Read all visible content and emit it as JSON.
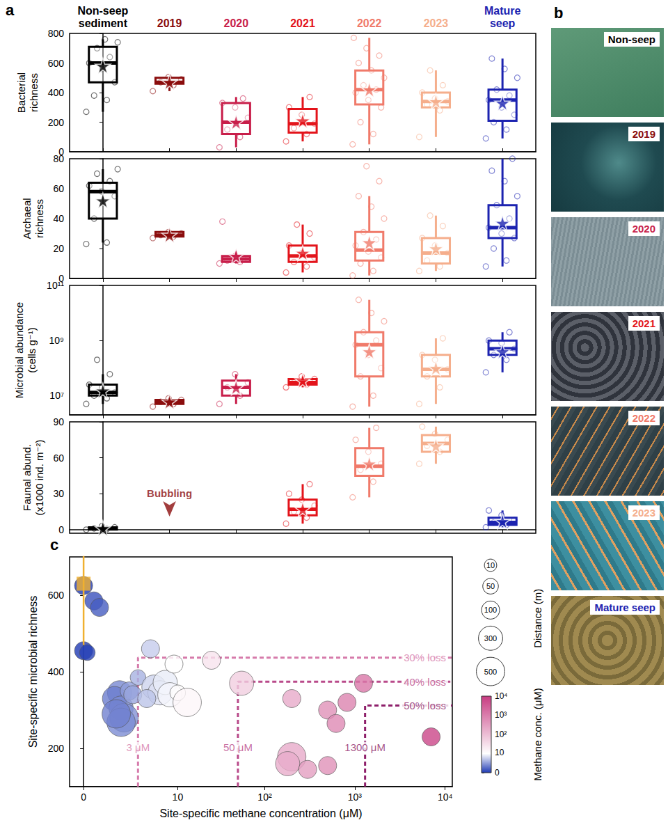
{
  "chart_data": [
    {
      "type": "box",
      "panel_label": "a",
      "ylabel": "Bacterial richness",
      "categories": [
        "Non-seep sediment",
        "2019",
        "2020",
        "2021",
        "2022",
        "2023",
        "Mature seep"
      ],
      "colors": [
        "#000000",
        "#8b0d0d",
        "#c81e4a",
        "#e3141b",
        "#f07a6a",
        "#f5ae8c",
        "#1c23b0"
      ],
      "boxes": [
        [
          270,
          470,
          600,
          710,
          760
        ],
        [
          410,
          460,
          470,
          500,
          510
        ],
        [
          30,
          120,
          200,
          330,
          370
        ],
        [
          70,
          130,
          190,
          290,
          370
        ],
        [
          50,
          320,
          420,
          550,
          770
        ],
        [
          100,
          300,
          340,
          400,
          550
        ],
        [
          90,
          210,
          350,
          420,
          630
        ]
      ],
      "means": [
        580,
        470,
        200,
        210,
        420,
        340,
        330
      ],
      "points": [
        [
          270,
          350,
          380,
          470,
          560,
          600,
          640,
          700,
          740,
          760
        ],
        [
          410,
          450,
          470,
          490,
          505
        ],
        [
          30,
          100,
          150,
          230,
          300,
          330,
          360
        ],
        [
          70,
          120,
          160,
          190,
          250,
          300,
          370
        ],
        [
          50,
          120,
          200,
          300,
          350,
          400,
          420,
          450,
          500,
          550,
          600,
          650,
          700,
          770
        ],
        [
          100,
          280,
          320,
          340,
          360,
          400,
          450,
          550
        ],
        [
          90,
          150,
          200,
          250,
          300,
          350,
          380,
          420,
          500,
          560,
          630
        ]
      ],
      "ylim": [
        0,
        800
      ],
      "yticks": [
        0,
        200,
        400,
        600,
        800
      ]
    },
    {
      "type": "box",
      "ylabel": "Archaeal richness",
      "categories": [
        "Non-seep sediment",
        "2019",
        "2020",
        "2021",
        "2022",
        "2023",
        "Mature seep"
      ],
      "colors": [
        "#000000",
        "#8b0d0d",
        "#c81e4a",
        "#e3141b",
        "#f07a6a",
        "#f5ae8c",
        "#1c23b0"
      ],
      "boxes": [
        [
          24,
          40,
          58,
          64,
          73
        ],
        [
          28,
          28,
          29,
          31,
          31
        ],
        [
          10,
          11,
          13,
          15,
          18
        ],
        [
          4,
          11,
          15,
          22,
          36
        ],
        [
          2,
          12,
          19,
          31,
          55
        ],
        [
          5,
          10,
          17,
          27,
          42
        ],
        [
          8,
          27,
          34,
          49,
          80
        ]
      ],
      "means": [
        52,
        29,
        15,
        17,
        24,
        20,
        37
      ],
      "points": [
        [
          23,
          24,
          40,
          55,
          58,
          62,
          65,
          70,
          73
        ],
        [
          27,
          28,
          29,
          30,
          31
        ],
        [
          10,
          11,
          12,
          13,
          15,
          38
        ],
        [
          4,
          8,
          11,
          14,
          17,
          22,
          30,
          36
        ],
        [
          2,
          5,
          10,
          14,
          18,
          22,
          26,
          31,
          40,
          48,
          55,
          65,
          75
        ],
        [
          5,
          8,
          12,
          17,
          22,
          27,
          35,
          42
        ],
        [
          8,
          12,
          20,
          27,
          30,
          34,
          40,
          49,
          55,
          65,
          72,
          80
        ]
      ],
      "ylim": [
        0,
        80
      ],
      "yticks": [
        0,
        20,
        40,
        60,
        80
      ],
      "tick_labels": "y"
    },
    {
      "type": "box",
      "ylabel": "Microbial abundance (cells g⁻¹)",
      "log": "y",
      "categories": [
        "Non-seep sediment",
        "2019",
        "2020",
        "2021",
        "2022",
        "2023",
        "Mature seep"
      ],
      "colors": [
        "#000000",
        "#8b0d0d",
        "#c81e4a",
        "#e3141b",
        "#f07a6a",
        "#f5ae8c",
        "#1c23b0"
      ],
      "boxes": [
        [
          5000000,
          10000000,
          13000000,
          25000000,
          60000000
        ],
        [
          4000000,
          5000000,
          6000000,
          7000000,
          8000000
        ],
        [
          5000000,
          10000000,
          20000000,
          35000000,
          60000000
        ],
        [
          20000000,
          25000000,
          30000000,
          40000000,
          50000000
        ],
        [
          4000000,
          50000000,
          700000000,
          2000000000,
          30000000000
        ],
        [
          5000000,
          50000000,
          90000000,
          300000000,
          1200000000
        ],
        [
          70000000,
          300000000,
          500000000,
          1000000000,
          2000000000
        ]
      ],
      "means": [
        15000000,
        6000000,
        20000000,
        35000000,
        400000000,
        100000000,
        400000000
      ],
      "points": [
        [
          5000000,
          8000000,
          10000000,
          13000000,
          20000000,
          25000000,
          60000000,
          200000000
        ],
        [
          4000000,
          5000000,
          6000000,
          7000000,
          8000000
        ],
        [
          5000000,
          10000000,
          20000000,
          30000000,
          60000000
        ],
        [
          20000000,
          25000000,
          30000000,
          40000000,
          50000000
        ],
        [
          4000000,
          10000000,
          50000000,
          100000000,
          300000000,
          700000000,
          1000000000,
          2000000000,
          5000000000,
          10000000000,
          30000000000
        ],
        [
          5000000,
          20000000,
          50000000,
          90000000,
          200000000,
          300000000,
          1200000000
        ],
        [
          70000000,
          200000000,
          300000000,
          500000000,
          800000000,
          1000000000,
          2000000000
        ]
      ],
      "ylim": [
        2000000,
        100000000000
      ],
      "yticks": [
        {
          "value": 10000000,
          "label": "10⁷"
        },
        {
          "value": 1000000000,
          "label": "10⁹"
        },
        {
          "value": 100000000000,
          "label": "10¹¹"
        }
      ],
      "tick_labels": "y"
    },
    {
      "type": "box",
      "ylabel": "Faunal abund. (x1000 ind. m⁻²)",
      "categories": [
        "Non-seep sediment",
        "2019",
        "2020",
        "2021",
        "2022",
        "2023",
        "Mature seep"
      ],
      "colors": [
        "#000000",
        "#8b0d0d",
        "#c81e4a",
        "#e3141b",
        "#f07a6a",
        "#f5ae8c",
        "#1c23b0"
      ],
      "boxes": [
        [
          0,
          0,
          1,
          2,
          3
        ],
        null,
        null,
        [
          5,
          12,
          17,
          25,
          38
        ],
        [
          27,
          45,
          53,
          68,
          85
        ],
        [
          55,
          65,
          72,
          79,
          86
        ],
        [
          2,
          4,
          6,
          10,
          16
        ]
      ],
      "means": [
        1,
        null,
        null,
        17,
        55,
        70,
        7
      ],
      "points": [
        [
          0,
          0.5,
          1,
          2,
          3
        ],
        null,
        null,
        [
          5,
          10,
          15,
          20,
          25,
          30,
          38
        ],
        [
          27,
          40,
          50,
          55,
          65,
          75,
          85
        ],
        [
          55,
          65,
          70,
          75,
          80,
          86
        ],
        [
          2,
          4,
          6,
          8,
          12,
          16
        ]
      ],
      "annotations": [
        {
          "text": "Bubbling",
          "category": "2019"
        }
      ],
      "ylim": [
        -3,
        90
      ],
      "yticks": [
        0,
        30,
        60,
        90
      ],
      "tick_labels": "y"
    },
    {
      "type": "scatter",
      "panel_label": "c",
      "xlabel": "Site-specific methane concentration (μM)",
      "ylabel": "Site-specific microbial richness",
      "log": "x",
      "xlim": [
        -0.3,
        12000
      ],
      "xticks": [
        0,
        10,
        {
          "value": 100,
          "label": "10²"
        },
        {
          "value": 1000,
          "label": "10³"
        },
        {
          "value": 10000,
          "label": "10⁴"
        }
      ],
      "ylim": [
        100,
        700
      ],
      "yticks": [
        200,
        400,
        600
      ],
      "points": {
        "x": [
          0,
          0.3,
          0.5,
          0,
          0.1,
          1.5,
          1.2,
          1.6,
          1.8,
          1.6,
          1.3,
          2.2,
          3,
          2.5,
          4.5,
          5,
          6,
          4,
          7,
          8,
          9,
          10,
          13,
          25,
          55,
          200,
          200,
          180,
          300,
          500,
          500,
          620,
          820,
          1250,
          7000
        ],
        "y": [
          625,
          585,
          568,
          455,
          450,
          345,
          330,
          305,
          280,
          268,
          290,
          350,
          385,
          340,
          460,
          360,
          345,
          330,
          372,
          340,
          420,
          345,
          320,
          430,
          370,
          330,
          178,
          160,
          145,
          155,
          300,
          265,
          320,
          370,
          230
        ],
        "distance": [
          100,
          100,
          100,
          100,
          50,
          300,
          300,
          300,
          500,
          500,
          500,
          100,
          50,
          100,
          100,
          300,
          300,
          100,
          300,
          300,
          100,
          50,
          500,
          100,
          300,
          100,
          500,
          300,
          100,
          100,
          100,
          100,
          100,
          100,
          100
        ]
      },
      "reference": {
        "x": 0,
        "y": 630,
        "error": [
          470,
          710
        ],
        "color": "#f0b030",
        "marker": "square"
      },
      "thresholds": [
        {
          "x": 3,
          "y": 437,
          "x_label": "3 μM",
          "y_label": "30% loss",
          "color": "#d67bab",
          "line_style": "dashed"
        },
        {
          "x": 50,
          "y": 374,
          "x_label": "50 μM",
          "y_label": "40% loss",
          "color": "#b94a8a",
          "line_style": "dashed"
        },
        {
          "x": 1300,
          "y": 312,
          "x_label": "1300 μM",
          "y_label": "50% loss",
          "color": "#8e1f6a",
          "line_style": "dashed"
        }
      ],
      "size_legend": {
        "title": "Distance (m)",
        "values": [
          10,
          50,
          100,
          300,
          500
        ]
      },
      "colorbar": {
        "label": "Methane conc. (μM)",
        "range": [
          0,
          10000
        ],
        "ticks": [
          0,
          10,
          {
            "value": 100,
            "label": "10²"
          },
          {
            "value": 1000,
            "label": "10³"
          },
          {
            "value": 10000,
            "label": "10⁴"
          }
        ]
      }
    }
  ],
  "panel_b": {
    "panel_label": "b",
    "photos": [
      {
        "label": "Non-seep",
        "color": "#000000"
      },
      {
        "label": "2019",
        "color": "#8b0d0d"
      },
      {
        "label": "2020",
        "color": "#c81e4a"
      },
      {
        "label": "2021",
        "color": "#e3141b"
      },
      {
        "label": "2022",
        "color": "#f07a6a"
      },
      {
        "label": "2023",
        "color": "#f5ae8c"
      },
      {
        "label": "Mature seep",
        "color": "#1c23b0"
      }
    ]
  }
}
